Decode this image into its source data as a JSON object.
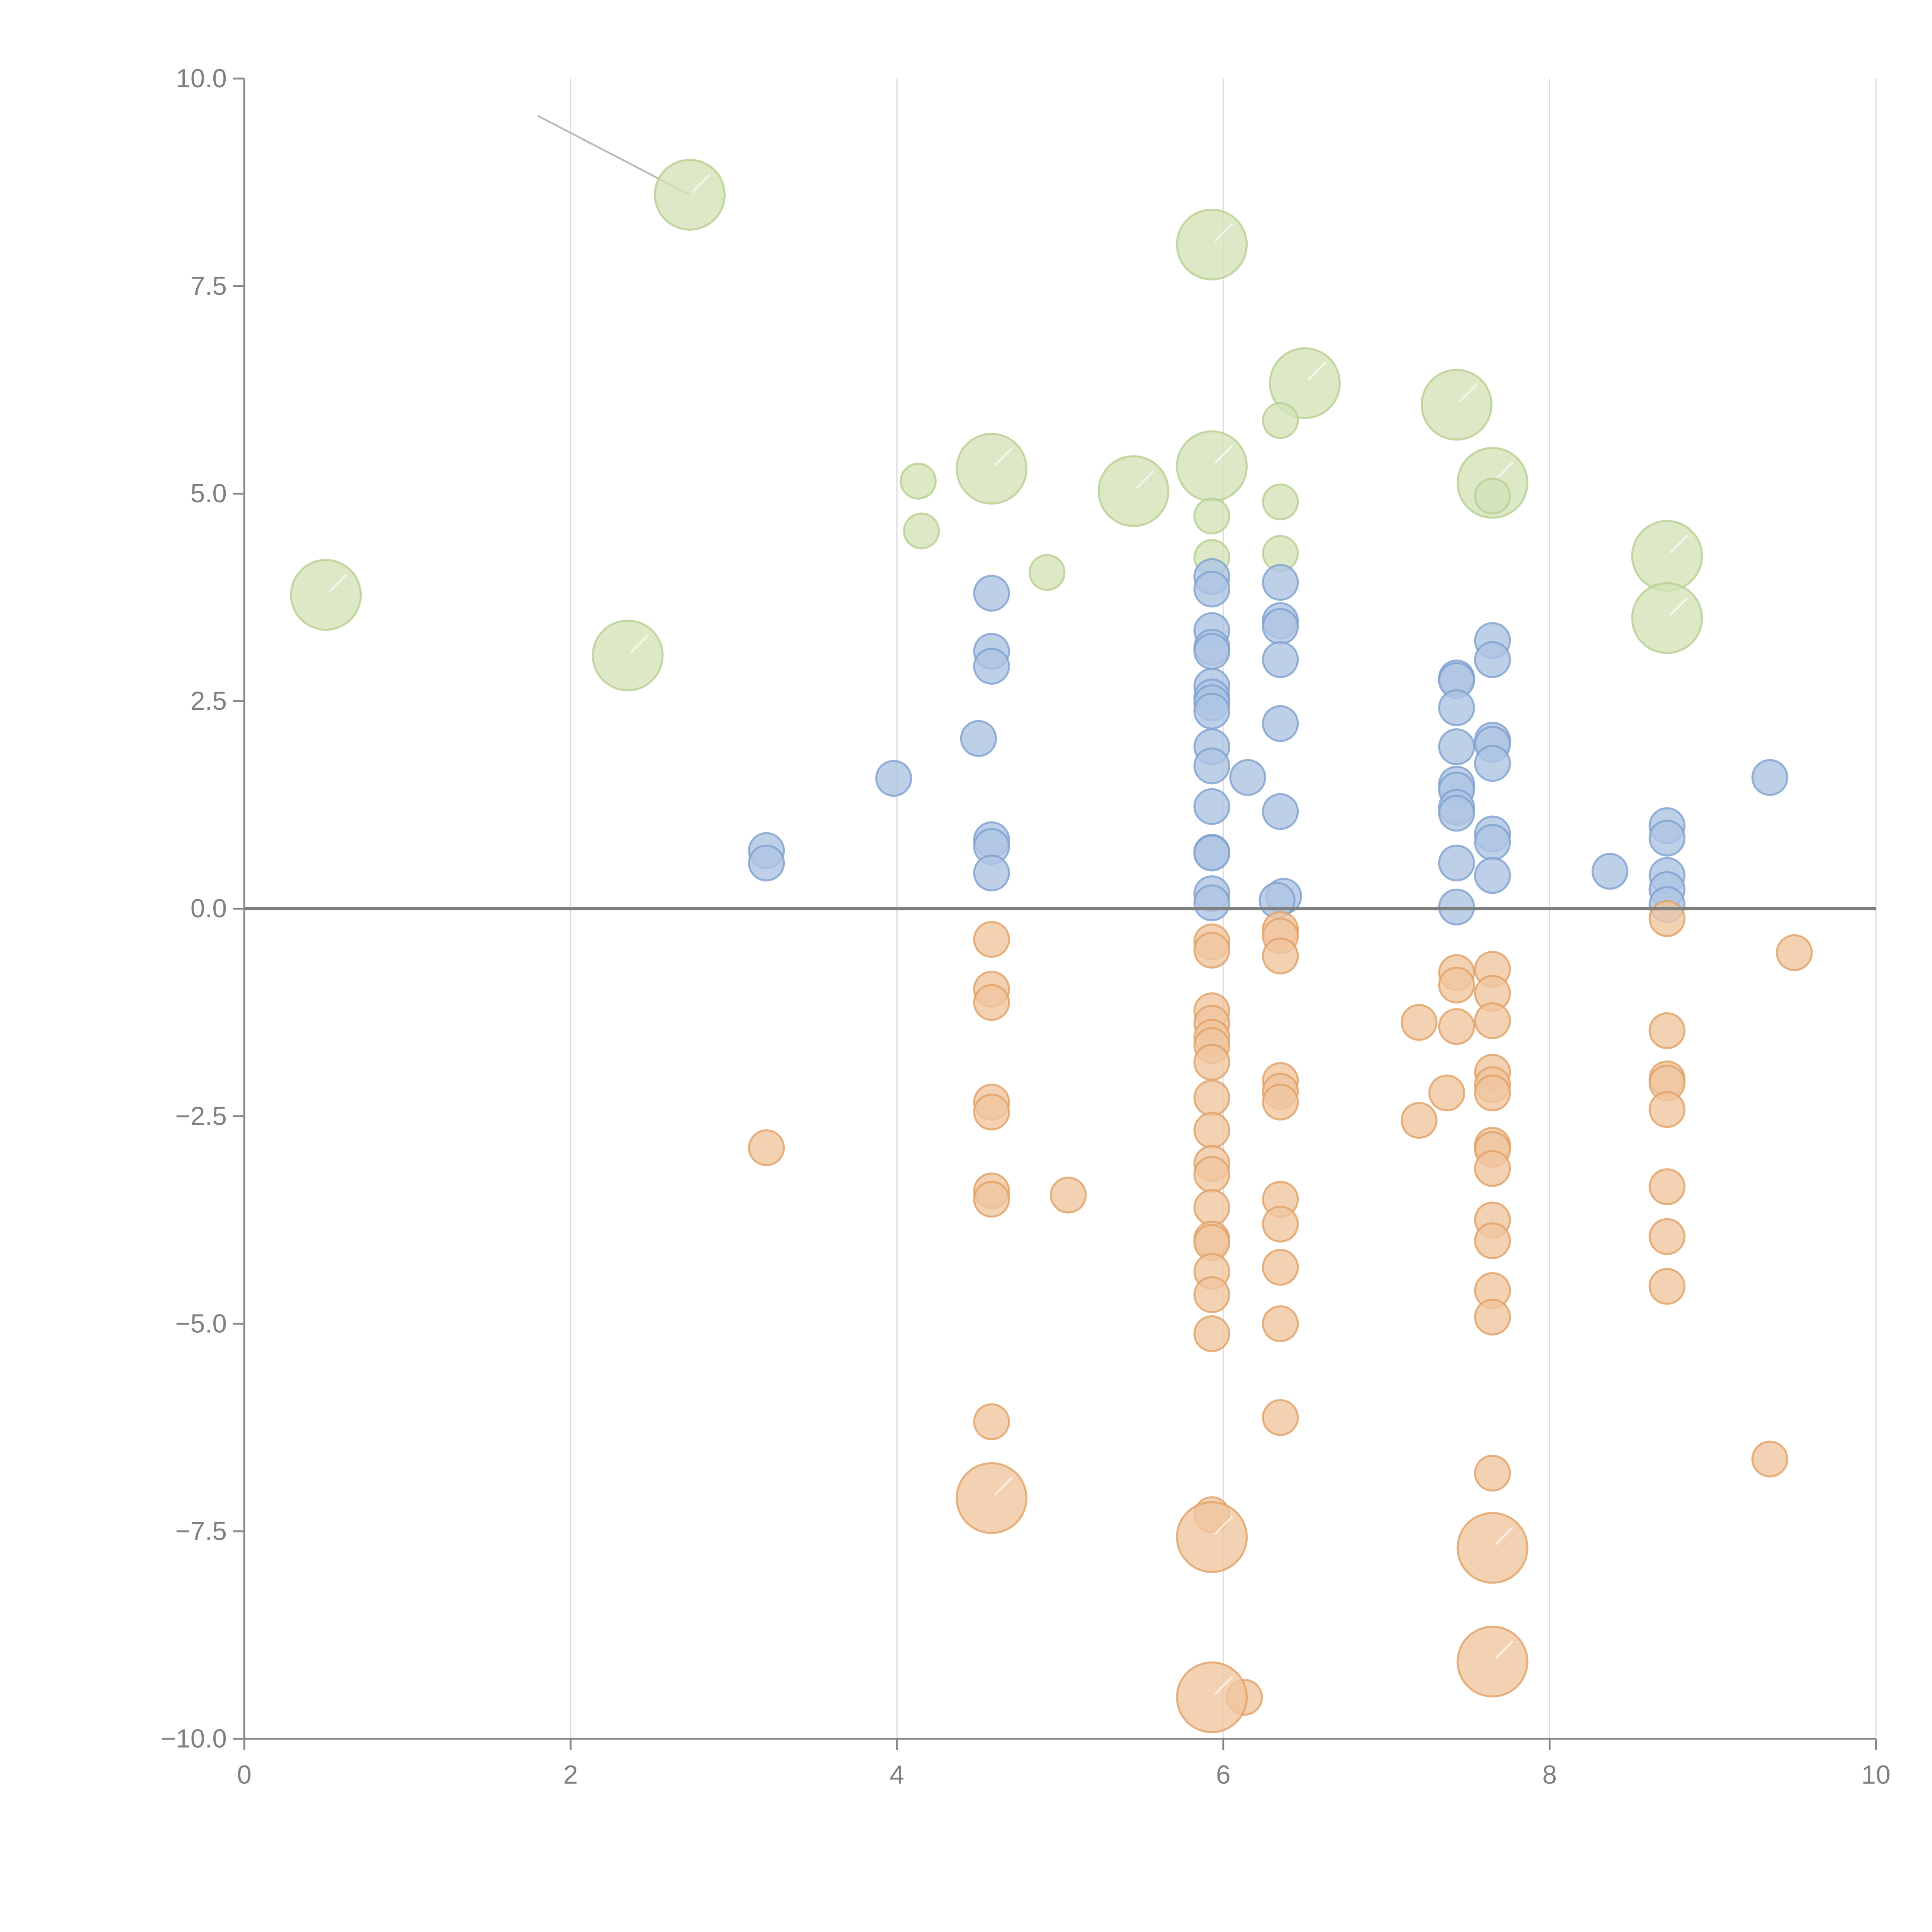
{
  "chart_data": {
    "type": "scatter",
    "subtype": "bubble",
    "title": "",
    "xlabel": "",
    "ylabel": "",
    "xlim": [
      0,
      10
    ],
    "ylim": [
      -10,
      10
    ],
    "grid": "vertical",
    "x_ticks": [
      "0",
      "2",
      "4",
      "6",
      "8",
      "10"
    ],
    "y_ticks": [
      "10.0",
      "7.5",
      "5.0",
      "2.5",
      "0.0",
      "−2.5",
      "−5.0",
      "−7.5",
      "−10.0"
    ],
    "x_tick_values": [
      0,
      2,
      4,
      6,
      8,
      10
    ],
    "y_tick_values": [
      10,
      7.5,
      5,
      2.5,
      0,
      -2.5,
      -5,
      -7.5,
      -10
    ],
    "reference_line_y": 0,
    "legend": "none",
    "series": [
      {
        "name": "green",
        "color": "#d3e2b8",
        "stroke": "#b5d08e",
        "points": [
          {
            "x": 2.73,
            "y": 8.6,
            "size": "large"
          },
          {
            "x": 5.93,
            "y": 8.0,
            "size": "large"
          },
          {
            "x": 6.5,
            "y": 6.33,
            "size": "large"
          },
          {
            "x": 7.43,
            "y": 6.07,
            "size": "large"
          },
          {
            "x": 6.35,
            "y": 5.88,
            "size": "small"
          },
          {
            "x": 4.58,
            "y": 5.3,
            "size": "large"
          },
          {
            "x": 5.93,
            "y": 5.33,
            "size": "large"
          },
          {
            "x": 4.13,
            "y": 5.15,
            "size": "small"
          },
          {
            "x": 7.65,
            "y": 5.13,
            "size": "large"
          },
          {
            "x": 5.45,
            "y": 5.03,
            "size": "large"
          },
          {
            "x": 7.65,
            "y": 4.97,
            "size": "small"
          },
          {
            "x": 6.35,
            "y": 4.9,
            "size": "small"
          },
          {
            "x": 5.93,
            "y": 4.73,
            "size": "small"
          },
          {
            "x": 4.15,
            "y": 4.55,
            "size": "small"
          },
          {
            "x": 6.35,
            "y": 4.28,
            "size": "small"
          },
          {
            "x": 8.72,
            "y": 4.25,
            "size": "large"
          },
          {
            "x": 5.93,
            "y": 4.23,
            "size": "small"
          },
          {
            "x": 4.92,
            "y": 4.05,
            "size": "small"
          },
          {
            "x": 0.5,
            "y": 3.78,
            "size": "large"
          },
          {
            "x": 8.72,
            "y": 3.5,
            "size": "large"
          },
          {
            "x": 2.35,
            "y": 3.05,
            "size": "large"
          }
        ]
      },
      {
        "name": "blue",
        "color": "#aec4e2",
        "stroke": "#7ea0d0",
        "points": [
          {
            "x": 5.93,
            "y": 4.0,
            "size": "small"
          },
          {
            "x": 5.93,
            "y": 3.85,
            "size": "small"
          },
          {
            "x": 6.35,
            "y": 3.93,
            "size": "small"
          },
          {
            "x": 4.58,
            "y": 3.8,
            "size": "small"
          },
          {
            "x": 6.35,
            "y": 3.47,
            "size": "small"
          },
          {
            "x": 6.35,
            "y": 3.4,
            "size": "small"
          },
          {
            "x": 5.93,
            "y": 3.35,
            "size": "small"
          },
          {
            "x": 7.65,
            "y": 3.23,
            "size": "small"
          },
          {
            "x": 5.93,
            "y": 3.15,
            "size": "small"
          },
          {
            "x": 5.93,
            "y": 3.1,
            "size": "small"
          },
          {
            "x": 4.58,
            "y": 3.1,
            "size": "small"
          },
          {
            "x": 6.35,
            "y": 3.0,
            "size": "small"
          },
          {
            "x": 7.65,
            "y": 3.0,
            "size": "small"
          },
          {
            "x": 4.58,
            "y": 2.92,
            "size": "small"
          },
          {
            "x": 7.43,
            "y": 2.78,
            "size": "small"
          },
          {
            "x": 7.43,
            "y": 2.75,
            "size": "small"
          },
          {
            "x": 5.93,
            "y": 2.68,
            "size": "small"
          },
          {
            "x": 5.93,
            "y": 2.55,
            "size": "small"
          },
          {
            "x": 5.93,
            "y": 2.48,
            "size": "small"
          },
          {
            "x": 7.43,
            "y": 2.42,
            "size": "small"
          },
          {
            "x": 5.93,
            "y": 2.38,
            "size": "small"
          },
          {
            "x": 6.35,
            "y": 2.23,
            "size": "small"
          },
          {
            "x": 4.5,
            "y": 2.05,
            "size": "small"
          },
          {
            "x": 7.65,
            "y": 2.03,
            "size": "small"
          },
          {
            "x": 7.65,
            "y": 1.98,
            "size": "small"
          },
          {
            "x": 7.43,
            "y": 1.95,
            "size": "small"
          },
          {
            "x": 5.93,
            "y": 1.95,
            "size": "small"
          },
          {
            "x": 7.65,
            "y": 1.75,
            "size": "small"
          },
          {
            "x": 5.93,
            "y": 1.72,
            "size": "small"
          },
          {
            "x": 3.98,
            "y": 1.57,
            "size": "small"
          },
          {
            "x": 6.15,
            "y": 1.58,
            "size": "small"
          },
          {
            "x": 9.35,
            "y": 1.58,
            "size": "small"
          },
          {
            "x": 7.43,
            "y": 1.5,
            "size": "small"
          },
          {
            "x": 7.43,
            "y": 1.43,
            "size": "small"
          },
          {
            "x": 5.93,
            "y": 1.23,
            "size": "small"
          },
          {
            "x": 7.43,
            "y": 1.22,
            "size": "small"
          },
          {
            "x": 7.43,
            "y": 1.15,
            "size": "small"
          },
          {
            "x": 6.35,
            "y": 1.17,
            "size": "small"
          },
          {
            "x": 8.72,
            "y": 1.0,
            "size": "small"
          },
          {
            "x": 7.65,
            "y": 0.9,
            "size": "small"
          },
          {
            "x": 8.72,
            "y": 0.85,
            "size": "small"
          },
          {
            "x": 4.58,
            "y": 0.83,
            "size": "small"
          },
          {
            "x": 7.65,
            "y": 0.8,
            "size": "small"
          },
          {
            "x": 4.58,
            "y": 0.75,
            "size": "small"
          },
          {
            "x": 3.2,
            "y": 0.7,
            "size": "small"
          },
          {
            "x": 5.93,
            "y": 0.68,
            "size": "small"
          },
          {
            "x": 5.93,
            "y": 0.67,
            "size": "small"
          },
          {
            "x": 3.2,
            "y": 0.55,
            "size": "small"
          },
          {
            "x": 7.43,
            "y": 0.55,
            "size": "small"
          },
          {
            "x": 8.37,
            "y": 0.45,
            "size": "small"
          },
          {
            "x": 4.58,
            "y": 0.43,
            "size": "small"
          },
          {
            "x": 7.65,
            "y": 0.4,
            "size": "small"
          },
          {
            "x": 8.72,
            "y": 0.4,
            "size": "small"
          },
          {
            "x": 8.72,
            "y": 0.23,
            "size": "small"
          },
          {
            "x": 5.93,
            "y": 0.18,
            "size": "small"
          },
          {
            "x": 6.37,
            "y": 0.15,
            "size": "small"
          },
          {
            "x": 6.33,
            "y": 0.1,
            "size": "small"
          },
          {
            "x": 5.93,
            "y": 0.07,
            "size": "small"
          },
          {
            "x": 8.72,
            "y": 0.05,
            "size": "small"
          },
          {
            "x": 7.43,
            "y": 0.02,
            "size": "small"
          }
        ]
      },
      {
        "name": "orange",
        "color": "#f0c6a0",
        "stroke": "#e2a064",
        "points": [
          {
            "x": 8.72,
            "y": -0.12,
            "size": "small"
          },
          {
            "x": 6.35,
            "y": -0.25,
            "size": "small"
          },
          {
            "x": 6.35,
            "y": -0.33,
            "size": "small"
          },
          {
            "x": 4.58,
            "y": -0.37,
            "size": "small"
          },
          {
            "x": 5.93,
            "y": -0.4,
            "size": "small"
          },
          {
            "x": 5.93,
            "y": -0.5,
            "size": "small"
          },
          {
            "x": 9.5,
            "y": -0.53,
            "size": "small"
          },
          {
            "x": 6.35,
            "y": -0.57,
            "size": "small"
          },
          {
            "x": 7.65,
            "y": -0.73,
            "size": "small"
          },
          {
            "x": 7.43,
            "y": -0.77,
            "size": "small"
          },
          {
            "x": 7.43,
            "y": -0.92,
            "size": "small"
          },
          {
            "x": 4.58,
            "y": -0.97,
            "size": "small"
          },
          {
            "x": 7.65,
            "y": -1.02,
            "size": "small"
          },
          {
            "x": 4.58,
            "y": -1.13,
            "size": "small"
          },
          {
            "x": 5.93,
            "y": -1.23,
            "size": "small"
          },
          {
            "x": 7.2,
            "y": -1.37,
            "size": "small"
          },
          {
            "x": 7.43,
            "y": -1.42,
            "size": "small"
          },
          {
            "x": 5.93,
            "y": -1.38,
            "size": "small"
          },
          {
            "x": 7.65,
            "y": -1.35,
            "size": "small"
          },
          {
            "x": 8.72,
            "y": -1.47,
            "size": "small"
          },
          {
            "x": 5.93,
            "y": -1.55,
            "size": "small"
          },
          {
            "x": 5.93,
            "y": -1.65,
            "size": "small"
          },
          {
            "x": 5.93,
            "y": -1.85,
            "size": "small"
          },
          {
            "x": 7.65,
            "y": -1.97,
            "size": "small"
          },
          {
            "x": 6.35,
            "y": -2.07,
            "size": "small"
          },
          {
            "x": 8.72,
            "y": -2.05,
            "size": "small"
          },
          {
            "x": 8.72,
            "y": -2.1,
            "size": "small"
          },
          {
            "x": 7.65,
            "y": -2.12,
            "size": "small"
          },
          {
            "x": 6.35,
            "y": -2.2,
            "size": "small"
          },
          {
            "x": 7.37,
            "y": -2.22,
            "size": "small"
          },
          {
            "x": 7.65,
            "y": -2.22,
            "size": "small"
          },
          {
            "x": 5.93,
            "y": -2.28,
            "size": "small"
          },
          {
            "x": 6.35,
            "y": -2.33,
            "size": "small"
          },
          {
            "x": 4.58,
            "y": -2.33,
            "size": "small"
          },
          {
            "x": 8.72,
            "y": -2.42,
            "size": "small"
          },
          {
            "x": 4.58,
            "y": -2.45,
            "size": "small"
          },
          {
            "x": 7.2,
            "y": -2.55,
            "size": "small"
          },
          {
            "x": 5.93,
            "y": -2.67,
            "size": "small"
          },
          {
            "x": 3.2,
            "y": -2.88,
            "size": "small"
          },
          {
            "x": 7.65,
            "y": -2.85,
            "size": "small"
          },
          {
            "x": 7.65,
            "y": -2.9,
            "size": "small"
          },
          {
            "x": 5.93,
            "y": -3.07,
            "size": "small"
          },
          {
            "x": 7.65,
            "y": -3.13,
            "size": "small"
          },
          {
            "x": 5.93,
            "y": -3.2,
            "size": "small"
          },
          {
            "x": 8.72,
            "y": -3.35,
            "size": "small"
          },
          {
            "x": 4.58,
            "y": -3.4,
            "size": "small"
          },
          {
            "x": 5.05,
            "y": -3.45,
            "size": "small"
          },
          {
            "x": 6.35,
            "y": -3.5,
            "size": "small"
          },
          {
            "x": 4.58,
            "y": -3.5,
            "size": "small"
          },
          {
            "x": 5.93,
            "y": -3.6,
            "size": "small"
          },
          {
            "x": 7.65,
            "y": -3.75,
            "size": "small"
          },
          {
            "x": 6.35,
            "y": -3.8,
            "size": "small"
          },
          {
            "x": 8.72,
            "y": -3.95,
            "size": "small"
          },
          {
            "x": 5.93,
            "y": -3.98,
            "size": "small"
          },
          {
            "x": 5.93,
            "y": -4.02,
            "size": "small"
          },
          {
            "x": 7.65,
            "y": -4.0,
            "size": "small"
          },
          {
            "x": 6.35,
            "y": -4.32,
            "size": "small"
          },
          {
            "x": 5.93,
            "y": -4.37,
            "size": "small"
          },
          {
            "x": 8.72,
            "y": -4.55,
            "size": "small"
          },
          {
            "x": 7.65,
            "y": -4.6,
            "size": "small"
          },
          {
            "x": 5.93,
            "y": -4.65,
            "size": "small"
          },
          {
            "x": 7.65,
            "y": -4.92,
            "size": "small"
          },
          {
            "x": 6.35,
            "y": -5.0,
            "size": "small"
          },
          {
            "x": 5.93,
            "y": -5.12,
            "size": "small"
          },
          {
            "x": 6.35,
            "y": -6.13,
            "size": "small"
          },
          {
            "x": 4.58,
            "y": -6.18,
            "size": "small"
          },
          {
            "x": 9.35,
            "y": -6.63,
            "size": "small"
          },
          {
            "x": 7.65,
            "y": -6.8,
            "size": "small"
          },
          {
            "x": 4.58,
            "y": -7.1,
            "size": "large"
          },
          {
            "x": 5.93,
            "y": -7.3,
            "size": "small"
          },
          {
            "x": 5.93,
            "y": -7.57,
            "size": "large"
          },
          {
            "x": 7.65,
            "y": -7.7,
            "size": "large"
          },
          {
            "x": 7.65,
            "y": -9.07,
            "size": "large"
          },
          {
            "x": 6.13,
            "y": -9.5,
            "size": "small"
          },
          {
            "x": 5.93,
            "y": -9.5,
            "size": "large"
          }
        ]
      }
    ],
    "annotation_leader": {
      "from": [
        1.8,
        9.55
      ],
      "to": [
        2.73,
        8.6
      ]
    }
  }
}
